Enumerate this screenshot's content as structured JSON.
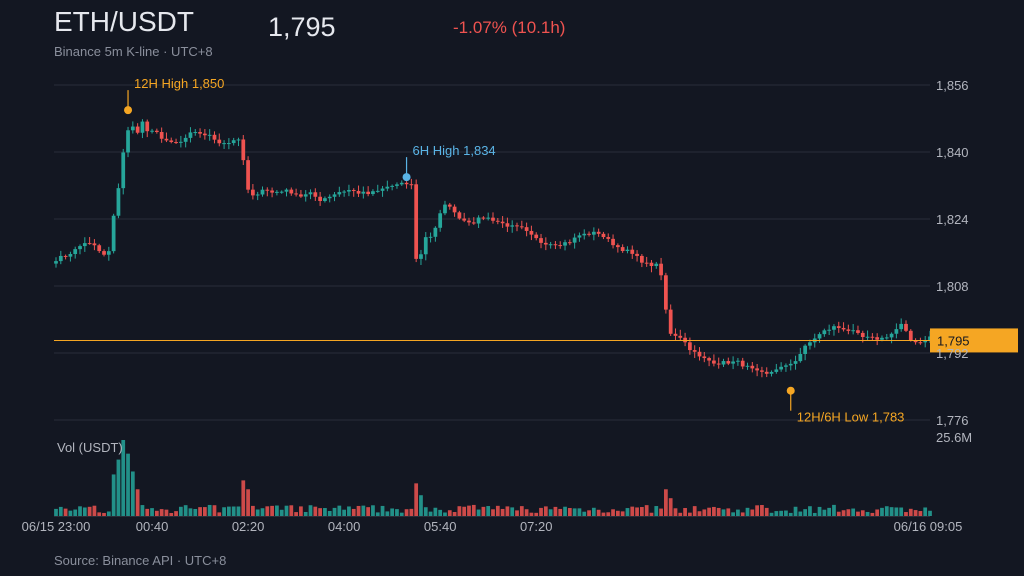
{
  "header": {
    "pair": "ETH/USDT",
    "subtitle": "Binance 5m K-line · UTC+8",
    "last_price": "1,795",
    "change": "-1.07% (10.1h)"
  },
  "footer": {
    "source": "Source: Binance API · UTC+8"
  },
  "colors": {
    "up": "#26a69a",
    "down": "#ef5350",
    "high_low": "#f5a623",
    "six_hour_high": "#5ab4e6",
    "price_line": "#f5a623",
    "grid": "#2a2e39",
    "background": "#131722"
  },
  "chart_data": {
    "type": "candlestick",
    "interval": "5m",
    "x_range": [
      "2025-06-15 23:00",
      "2025-06-16 09:05"
    ],
    "x_ticks": [
      "06/15 23:00",
      "00:40",
      "02:20",
      "04:00",
      "05:40",
      "07:20",
      "06/16 09:05"
    ],
    "y_ticks": [
      "1,856",
      "1,840",
      "1,824",
      "1,808",
      "1,792",
      "1,776"
    ],
    "y_range": [
      1776,
      1856
    ],
    "y_ticks_values": [
      1856,
      1840,
      1824,
      1808,
      1792,
      1776
    ],
    "last_price": 1795,
    "last_price_label": "1,795",
    "volume_label": "Vol (USDT)",
    "volume_max_label": "25.6M",
    "volume_max": 25.6,
    "annotations": [
      {
        "label": "12H High 1,850",
        "candle": 15,
        "price": 1850,
        "type": "high",
        "color": "#f5a623"
      },
      {
        "label": "6H High 1,834",
        "candle": 73,
        "price": 1834,
        "type": "high",
        "color": "#5ab4e6"
      },
      {
        "label": "12H/6H Low 1,783",
        "candle": 153,
        "price": 1783,
        "type": "low",
        "color": "#f5a623"
      }
    ],
    "anchors": [
      [
        0,
        1814.4
      ],
      [
        2,
        1815.2
      ],
      [
        4,
        1816.6
      ],
      [
        6,
        1818.4
      ],
      [
        8,
        1817.5
      ],
      [
        9,
        1816.3
      ],
      [
        10,
        1815.3
      ],
      [
        11,
        1816.2
      ],
      [
        12,
        1824.5
      ],
      [
        13,
        1831.6
      ],
      [
        14,
        1840
      ],
      [
        15,
        1845
      ],
      [
        16,
        1845.9
      ],
      [
        17,
        1845
      ],
      [
        18,
        1847.1
      ],
      [
        19,
        1845
      ],
      [
        20,
        1844.7
      ],
      [
        21,
        1844.5
      ],
      [
        22,
        1843.5
      ],
      [
        24,
        1842
      ],
      [
        26,
        1842.3
      ],
      [
        28,
        1844.3
      ],
      [
        30,
        1844.5
      ],
      [
        32,
        1843.8
      ],
      [
        34,
        1842.4
      ],
      [
        36,
        1842.2
      ],
      [
        37,
        1843
      ],
      [
        38,
        1842.6
      ],
      [
        39,
        1838
      ],
      [
        40,
        1830.8
      ],
      [
        41,
        1829.3
      ],
      [
        43,
        1831.2
      ],
      [
        45,
        1830.3
      ],
      [
        47,
        1830.8
      ],
      [
        49,
        1830.5
      ],
      [
        51,
        1829.5
      ],
      [
        53,
        1830
      ],
      [
        55,
        1828.6
      ],
      [
        57,
        1829.5
      ],
      [
        59,
        1830.5
      ],
      [
        61,
        1830.9
      ],
      [
        63,
        1830.3
      ],
      [
        65,
        1830
      ],
      [
        67,
        1830.6
      ],
      [
        69,
        1831.7
      ],
      [
        71,
        1832.1
      ],
      [
        73,
        1832.4
      ],
      [
        74,
        1832.1
      ],
      [
        75,
        1814.7
      ],
      [
        76,
        1815.5
      ],
      [
        77,
        1819.8
      ],
      [
        78,
        1819.9
      ],
      [
        79,
        1822
      ],
      [
        80,
        1825.1
      ],
      [
        81,
        1827.1
      ],
      [
        82,
        1827.3
      ],
      [
        83,
        1825.3
      ],
      [
        85,
        1823.7
      ],
      [
        87,
        1823.3
      ],
      [
        89,
        1824.5
      ],
      [
        91,
        1823.9
      ],
      [
        93,
        1822.9
      ],
      [
        95,
        1822.1
      ],
      [
        97,
        1821.7
      ],
      [
        99,
        1819.9
      ],
      [
        101,
        1818.5
      ],
      [
        103,
        1818.2
      ],
      [
        105,
        1818.1
      ],
      [
        107,
        1818.6
      ],
      [
        109,
        1820.1
      ],
      [
        111,
        1820.5
      ],
      [
        113,
        1820.7
      ],
      [
        115,
        1818.9
      ],
      [
        117,
        1817.3
      ],
      [
        119,
        1816.3
      ],
      [
        121,
        1814.8
      ],
      [
        123,
        1813.2
      ],
      [
        125,
        1812.9
      ],
      [
        126,
        1810.5
      ],
      [
        127,
        1802.2
      ],
      [
        128,
        1796.8
      ],
      [
        130,
        1795.9
      ],
      [
        132,
        1793.1
      ],
      [
        134,
        1791
      ],
      [
        136,
        1790.2
      ],
      [
        138,
        1789.6
      ],
      [
        140,
        1789.8
      ],
      [
        142,
        1789.8
      ],
      [
        144,
        1788.6
      ],
      [
        146,
        1787.4
      ],
      [
        148,
        1786.8
      ],
      [
        150,
        1788.3
      ],
      [
        152,
        1788.7
      ],
      [
        154,
        1790.3
      ],
      [
        156,
        1793.4
      ],
      [
        158,
        1795.6
      ],
      [
        160,
        1797.2
      ],
      [
        162,
        1798.2
      ],
      [
        164,
        1797.9
      ],
      [
        166,
        1797
      ],
      [
        168,
        1795.7
      ],
      [
        170,
        1795.4
      ],
      [
        172,
        1795.5
      ],
      [
        174,
        1796.6
      ],
      [
        176,
        1798.7
      ],
      [
        178,
        1795.1
      ],
      [
        180,
        1794.6
      ],
      [
        182,
        1795.8
      ]
    ],
    "spikes": [
      {
        "index": 12,
        "volume": 14
      },
      {
        "index": 13,
        "volume": 19
      },
      {
        "index": 14,
        "volume": 25.6
      },
      {
        "index": 15,
        "volume": 21
      },
      {
        "index": 16,
        "volume": 15
      },
      {
        "index": 17,
        "volume": 9
      },
      {
        "index": 39,
        "volume": 12
      },
      {
        "index": 40,
        "volume": 9
      },
      {
        "index": 75,
        "volume": 11
      },
      {
        "index": 76,
        "volume": 7
      },
      {
        "index": 127,
        "volume": 9
      },
      {
        "index": 128,
        "volume": 6
      }
    ],
    "volume_base": 2.5
  }
}
